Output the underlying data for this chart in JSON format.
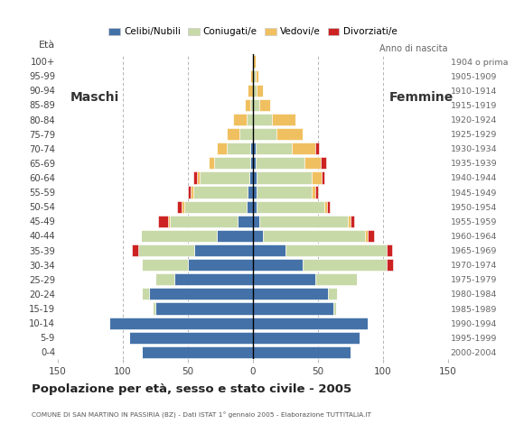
{
  "age_groups": [
    "0-4",
    "5-9",
    "10-14",
    "15-19",
    "20-24",
    "25-29",
    "30-34",
    "35-39",
    "40-44",
    "45-49",
    "50-54",
    "55-59",
    "60-64",
    "65-69",
    "70-74",
    "75-79",
    "80-84",
    "85-89",
    "90-94",
    "95-99",
    "100+"
  ],
  "birth_years": [
    "2000-2004",
    "1995-1999",
    "1990-1994",
    "1985-1989",
    "1980-1984",
    "1975-1979",
    "1970-1974",
    "1965-1969",
    "1960-1964",
    "1955-1959",
    "1950-1954",
    "1945-1949",
    "1940-1944",
    "1935-1939",
    "1930-1934",
    "1925-1929",
    "1920-1924",
    "1915-1919",
    "1910-1914",
    "1905-1909",
    "1904 o prima"
  ],
  "colors": {
    "celibe": "#4472a8",
    "coniugato": "#c8d9a8",
    "vedovo": "#f0c060",
    "divorziato": "#cc2222"
  },
  "males": {
    "celibe": [
      85,
      95,
      110,
      75,
      80,
      60,
      50,
      45,
      28,
      12,
      5,
      4,
      3,
      2,
      2,
      0,
      0,
      0,
      0,
      0,
      0
    ],
    "coniugato": [
      0,
      0,
      0,
      2,
      5,
      15,
      35,
      43,
      58,
      52,
      48,
      42,
      38,
      28,
      18,
      10,
      5,
      2,
      0,
      0,
      0
    ],
    "vedovo": [
      0,
      0,
      0,
      0,
      0,
      0,
      0,
      0,
      0,
      1,
      2,
      2,
      2,
      4,
      8,
      10,
      10,
      4,
      4,
      2,
      0
    ],
    "divorziato": [
      0,
      0,
      0,
      0,
      0,
      0,
      0,
      5,
      0,
      8,
      3,
      2,
      3,
      0,
      0,
      0,
      0,
      0,
      0,
      0,
      0
    ]
  },
  "females": {
    "celibe": [
      75,
      82,
      88,
      62,
      58,
      48,
      38,
      25,
      8,
      5,
      3,
      3,
      3,
      2,
      2,
      0,
      0,
      0,
      0,
      0,
      0
    ],
    "coniugato": [
      0,
      0,
      0,
      2,
      7,
      32,
      65,
      78,
      78,
      68,
      52,
      42,
      42,
      38,
      28,
      18,
      15,
      5,
      3,
      2,
      0
    ],
    "vedovo": [
      0,
      0,
      0,
      0,
      0,
      0,
      0,
      0,
      2,
      2,
      2,
      3,
      8,
      12,
      18,
      20,
      18,
      8,
      5,
      2,
      2
    ],
    "divorziato": [
      0,
      0,
      0,
      0,
      0,
      0,
      5,
      4,
      5,
      3,
      2,
      2,
      2,
      4,
      3,
      0,
      0,
      0,
      0,
      0,
      0
    ]
  },
  "xlim": 150,
  "title": "Popolazione per età, sesso e stato civile - 2005",
  "subtitle": "COMUNE DI SAN MARTINO IN PASSIRIA (BZ) - Dati ISTAT 1° gennaio 2005 - Elaborazione TUTTITALIA.IT",
  "ylabel_eta": "Età",
  "ylabel_anno": "Anno di nascita",
  "label_maschi": "Maschi",
  "label_femmine": "Femmine",
  "legend_labels": [
    "Celibi/Nubili",
    "Coniugati/e",
    "Vedovi/e",
    "Divorziati/e"
  ],
  "bg_color": "#ffffff",
  "grid_color": "#aaaaaa",
  "xtick_labels": [
    "150",
    "100",
    "50",
    "0",
    "50",
    "100",
    "150"
  ]
}
